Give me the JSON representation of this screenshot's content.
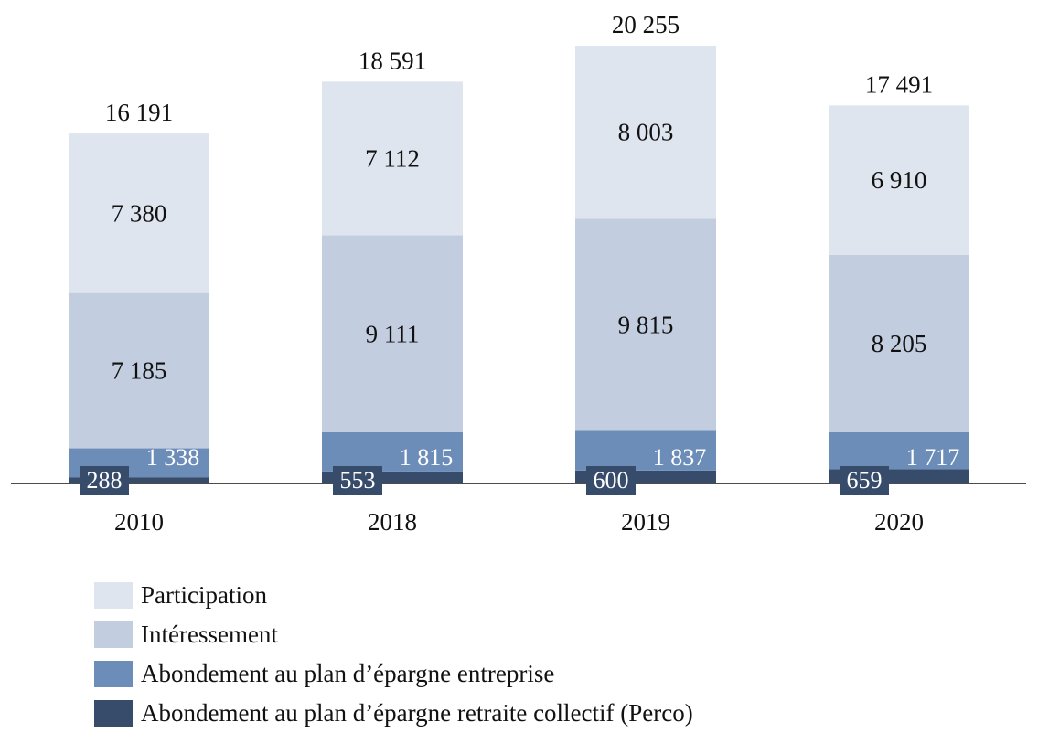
{
  "chart_data": {
    "type": "bar",
    "stacked": true,
    "title": "",
    "xlabel": "",
    "ylabel": "",
    "categories": [
      "2010",
      "2018",
      "2019",
      "2020"
    ],
    "totals": [
      16191,
      18591,
      20255,
      17491
    ],
    "total_labels": [
      "16 191",
      "18 591",
      "20 255",
      "17 491"
    ],
    "series": [
      {
        "name": "Abondement au plan d’épargne retraite collectif (Perco)",
        "values": [
          288,
          553,
          600,
          659
        ],
        "labels": [
          "288",
          "553",
          "600",
          "659"
        ],
        "color": "#374b6b",
        "label_color": "#ffffff"
      },
      {
        "name": "Abondement au plan d’épargne entreprise",
        "values": [
          1338,
          1815,
          1837,
          1717
        ],
        "labels": [
          "1 338",
          "1 815",
          "1 837",
          "1 717"
        ],
        "color": "#6d8db9",
        "label_color": "#ffffff"
      },
      {
        "name": "Intéressement",
        "values": [
          7185,
          9111,
          9815,
          8205
        ],
        "labels": [
          "7 185",
          "9 111",
          "9 815",
          "8 205"
        ],
        "color": "#c3cde0",
        "label_color": "#111111"
      },
      {
        "name": "Participation",
        "values": [
          7380,
          7112,
          8003,
          6910
        ],
        "labels": [
          "7 380",
          "7 112",
          "8 003",
          "6 910"
        ],
        "color": "#dfe5ef",
        "label_color": "#111111"
      }
    ],
    "legend_position": "bottom-left",
    "grid": false
  }
}
